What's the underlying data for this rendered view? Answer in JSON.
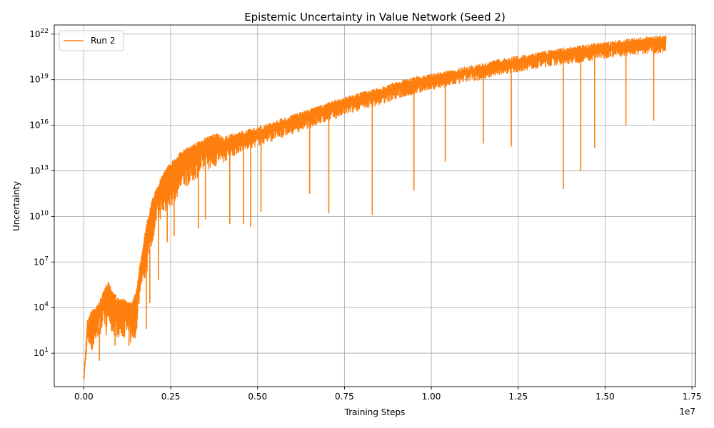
{
  "chart_data": {
    "type": "line",
    "title": "Epistemic Uncertainty in Value Network (Seed 2)",
    "xlabel": "Training Steps",
    "ylabel": "Uncertainty",
    "x_offset_label": "1e7",
    "x_scale": "linear",
    "y_scale": "log",
    "xlim": [
      -850000,
      17600000
    ],
    "ylim_log10": [
      -1.2,
      22.6
    ],
    "grid": true,
    "legend_position": "top-left",
    "x_ticks": [
      0,
      2500000,
      5000000,
      7500000,
      10000000,
      12500000,
      15000000,
      17500000
    ],
    "x_tick_labels": [
      "0.00",
      "0.25",
      "0.50",
      "0.75",
      "1.00",
      "1.25",
      "1.50",
      "1.75"
    ],
    "y_tick_exponents": [
      1,
      4,
      7,
      10,
      13,
      16,
      19,
      22
    ],
    "y_tick_labels": [
      "10",
      "10",
      "10",
      "10",
      "10",
      "10",
      "10",
      "10"
    ],
    "y_tick_superscripts": [
      "1",
      "4",
      "7",
      "10",
      "13",
      "16",
      "19",
      "22"
    ],
    "series": [
      {
        "name": "Run 2",
        "color": "#ff7f0e",
        "x": [
          0,
          100000,
          250000,
          400000,
          550000,
          700000,
          800000,
          1000000,
          1200000,
          1350000,
          1500000,
          1650000,
          1800000,
          1950000,
          2100000,
          2300000,
          2500000,
          2750000,
          3000000,
          3250000,
          3500000,
          3700000,
          3850000,
          4000000,
          4200000,
          4500000,
          5000000,
          5500000,
          6000000,
          6500000,
          7000000,
          7500000,
          8000000,
          8500000,
          9000000,
          9500000,
          10000000,
          10500000,
          11000000,
          11500000,
          12000000,
          12500000,
          13000000,
          13500000,
          14000000,
          14500000,
          15000000,
          15500000,
          16000000,
          16500000,
          16750000
        ],
        "y_log10": [
          -0.5,
          3.2,
          4.0,
          4.2,
          5.0,
          5.8,
          5.3,
          4.6,
          4.6,
          4.4,
          5.0,
          7.5,
          9.5,
          11.0,
          12.0,
          13.0,
          13.6,
          14.2,
          14.6,
          14.9,
          15.2,
          15.4,
          15.5,
          15.2,
          15.4,
          15.6,
          15.9,
          16.3,
          16.7,
          17.1,
          17.5,
          17.9,
          18.2,
          18.5,
          18.9,
          19.2,
          19.4,
          19.6,
          19.9,
          20.1,
          20.4,
          20.6,
          20.8,
          21.0,
          21.2,
          21.35,
          21.5,
          21.65,
          21.8,
          21.9,
          22.0
        ],
        "lower_log10": [
          -1.0,
          1.5,
          1.0,
          2.0,
          2.5,
          2.8,
          2.2,
          2.0,
          2.0,
          1.5,
          2.0,
          5.5,
          6.0,
          8.0,
          9.5,
          10.0,
          10.5,
          11.5,
          12.0,
          12.5,
          13.0,
          13.2,
          13.3,
          13.5,
          13.8,
          14.2,
          14.6,
          15.0,
          15.4,
          15.8,
          16.2,
          16.6,
          17.0,
          17.3,
          17.7,
          18.0,
          18.3,
          18.5,
          18.8,
          19.0,
          19.3,
          19.5,
          19.7,
          19.9,
          20.0,
          20.2,
          20.4,
          20.5,
          20.6,
          20.7,
          20.8
        ]
      }
    ],
    "dips": [
      {
        "x": 450000,
        "y_log10": 0.5
      },
      {
        "x": 650000,
        "y_log10": 2.2
      },
      {
        "x": 900000,
        "y_log10": 1.5
      },
      {
        "x": 1300000,
        "y_log10": 1.5
      },
      {
        "x": 1550000,
        "y_log10": 3.9
      },
      {
        "x": 1800000,
        "y_log10": 2.6
      },
      {
        "x": 1900000,
        "y_log10": 4.3
      },
      {
        "x": 2150000,
        "y_log10": 5.8
      },
      {
        "x": 2400000,
        "y_log10": 8.3
      },
      {
        "x": 2600000,
        "y_log10": 8.7
      },
      {
        "x": 3300000,
        "y_log10": 9.2
      },
      {
        "x": 3500000,
        "y_log10": 9.8
      },
      {
        "x": 4200000,
        "y_log10": 9.5
      },
      {
        "x": 4600000,
        "y_log10": 9.5
      },
      {
        "x": 4800000,
        "y_log10": 9.3
      },
      {
        "x": 5100000,
        "y_log10": 10.3
      },
      {
        "x": 6500000,
        "y_log10": 11.5
      },
      {
        "x": 7050000,
        "y_log10": 10.2
      },
      {
        "x": 8300000,
        "y_log10": 10.1
      },
      {
        "x": 9500000,
        "y_log10": 11.7
      },
      {
        "x": 10400000,
        "y_log10": 13.6
      },
      {
        "x": 11500000,
        "y_log10": 14.8
      },
      {
        "x": 12300000,
        "y_log10": 14.6
      },
      {
        "x": 13800000,
        "y_log10": 11.8
      },
      {
        "x": 14300000,
        "y_log10": 13.0
      },
      {
        "x": 14700000,
        "y_log10": 14.5
      },
      {
        "x": 15600000,
        "y_log10": 16.0
      },
      {
        "x": 16400000,
        "y_log10": 16.3
      }
    ]
  }
}
